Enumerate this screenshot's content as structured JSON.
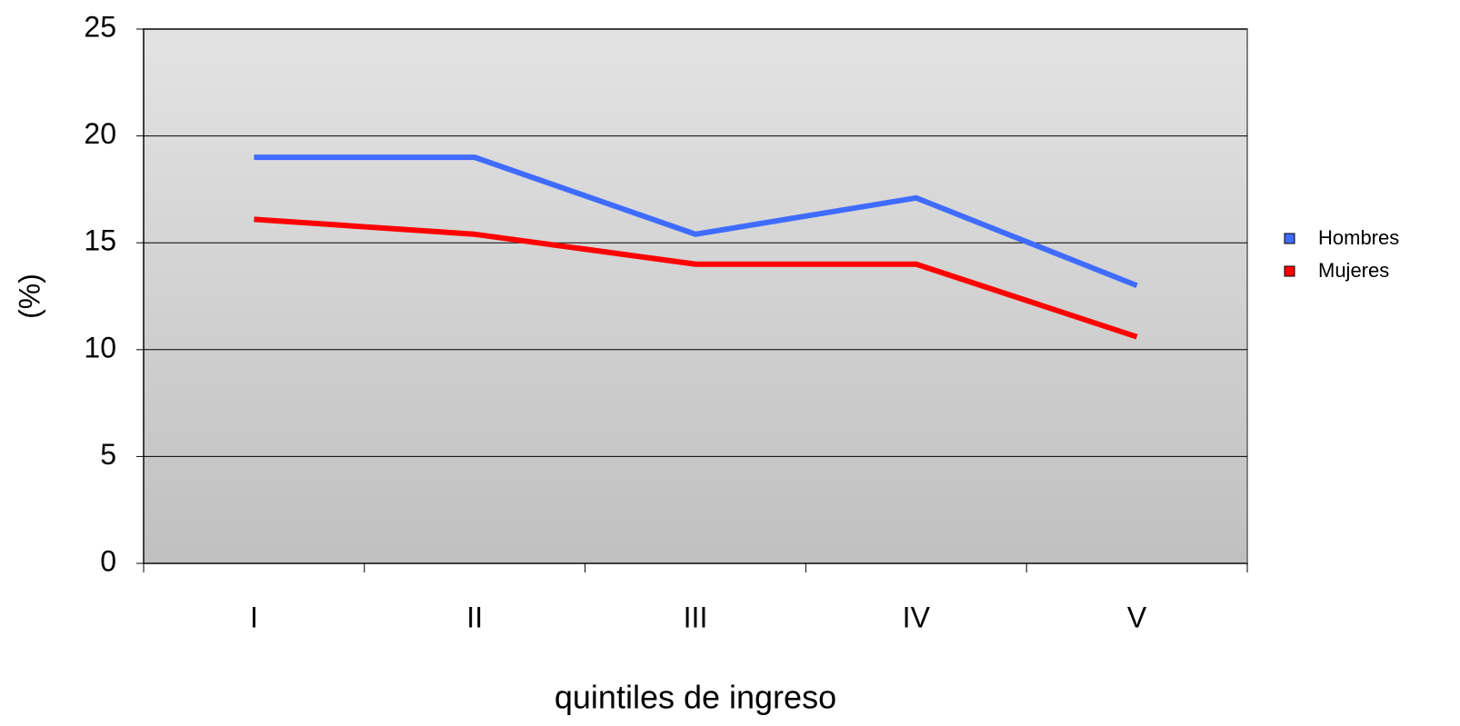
{
  "chart_data": {
    "type": "line",
    "y_label": "(%)",
    "x_label": "quintiles de ingreso",
    "categories": [
      "I",
      "II",
      "III",
      "IV",
      "V"
    ],
    "series": [
      {
        "name": "Hombres",
        "color": "#3f6cff",
        "values": [
          19.0,
          19.0,
          15.4,
          17.1,
          13.0
        ]
      },
      {
        "name": "Mujeres",
        "color": "#ff0000",
        "values": [
          16.1,
          15.4,
          14.0,
          14.0,
          10.6
        ]
      }
    ],
    "ylim": [
      0,
      25
    ],
    "yticks": [
      0,
      5,
      10,
      15,
      20,
      25
    ],
    "grid": true,
    "legend": "right"
  }
}
